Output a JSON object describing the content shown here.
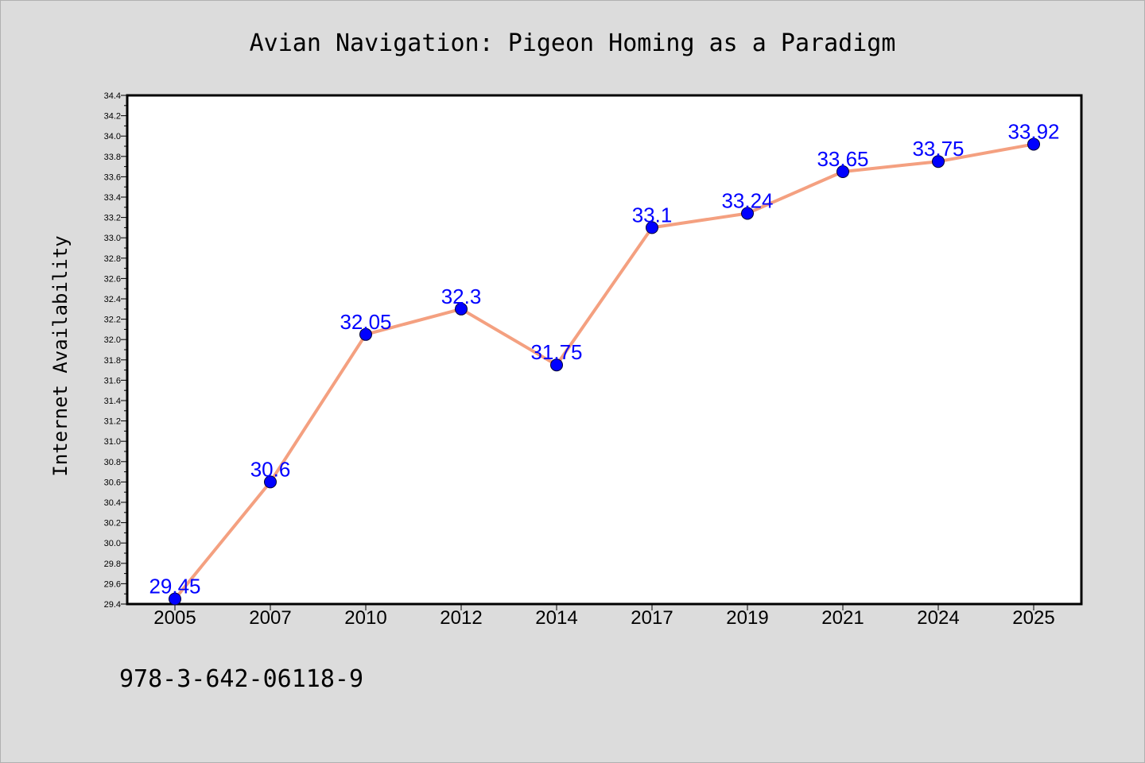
{
  "footer_text": "978-3-642-06118-9",
  "colors": {
    "background": "#dcdcdc",
    "plot_background": "#ffffff",
    "line": "#f4a080",
    "marker": "#0000ff",
    "data_label": "#0000ff"
  },
  "chart_data": {
    "type": "line",
    "title": "Avian Navigation: Pigeon Homing as a Paradigm",
    "xlabel": "",
    "ylabel": "Internet Availability",
    "categories": [
      "2005",
      "2007",
      "2010",
      "2012",
      "2014",
      "2017",
      "2019",
      "2021",
      "2024",
      "2025"
    ],
    "series": [
      {
        "values": [
          29.45,
          30.6,
          32.05,
          32.3,
          31.75,
          33.1,
          33.24,
          33.65,
          33.75,
          33.92
        ],
        "data_labels": [
          "29.45",
          "30.6",
          "32.05",
          "32.3",
          "31.75",
          "33.1",
          "33.24",
          "33.65",
          "33.75",
          "33.92"
        ]
      }
    ],
    "ylim": [
      29.4,
      34.4
    ],
    "yticks": [
      "29.4",
      "29.6",
      "29.8",
      "30.0",
      "30.2",
      "30.4",
      "30.6",
      "30.8",
      "31.0",
      "31.2",
      "31.4",
      "31.6",
      "31.8",
      "32.0",
      "32.2",
      "32.4",
      "32.6",
      "32.8",
      "33.0",
      "33.2",
      "33.4",
      "33.6",
      "33.8",
      "34.0",
      "34.2",
      "34.4"
    ],
    "grid": false,
    "legend": "none"
  }
}
